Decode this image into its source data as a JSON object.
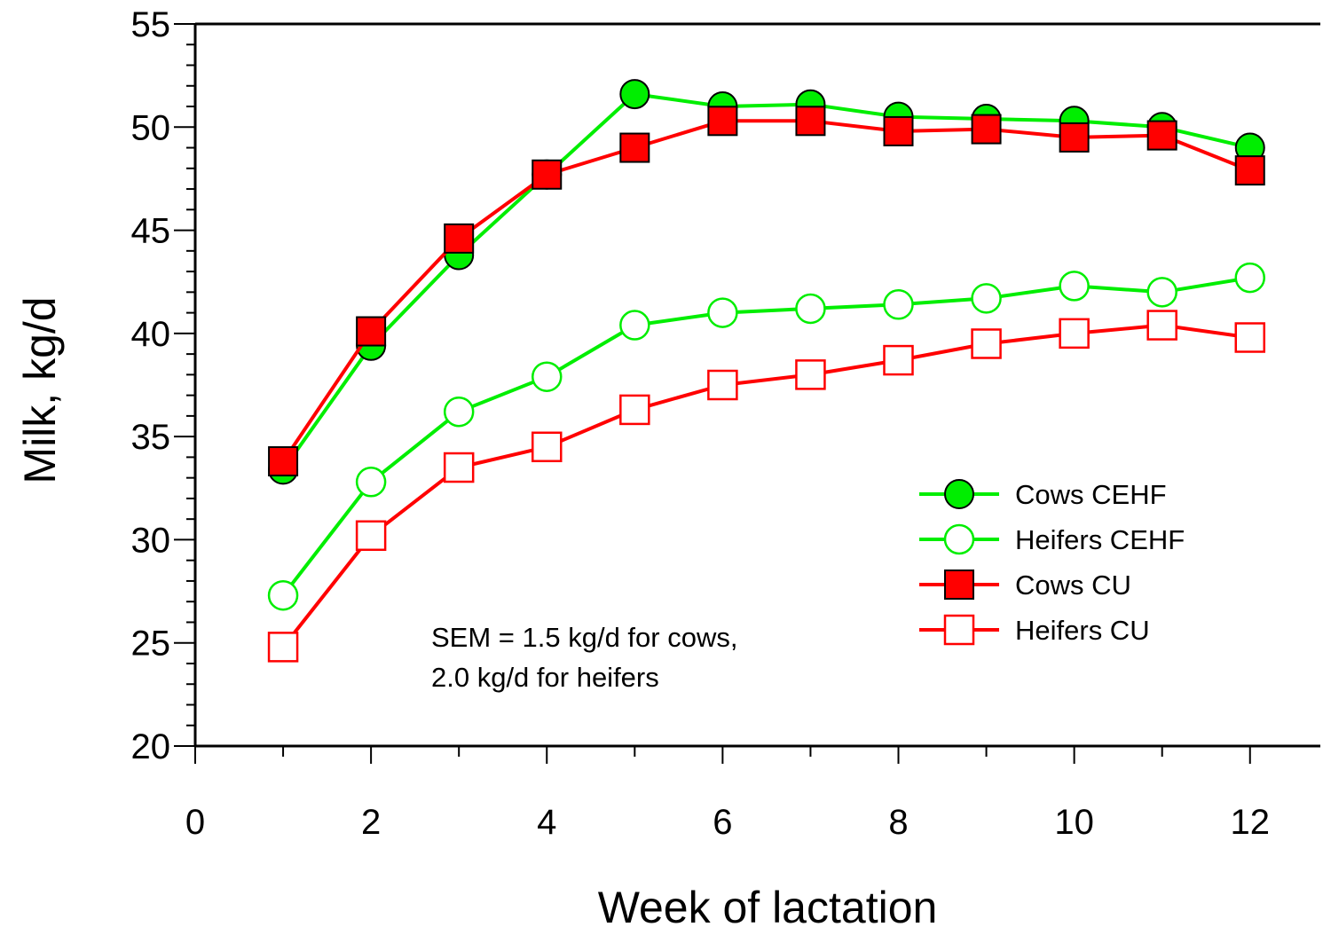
{
  "chart_data": {
    "type": "line",
    "title": "",
    "xlabel": "Week of lactation",
    "ylabel": "Milk, kg/d",
    "xlim": [
      0,
      12.8
    ],
    "ylim": [
      20,
      55
    ],
    "x_ticks": [
      "0",
      "2",
      "4",
      "6",
      "8",
      "10",
      "12"
    ],
    "y_ticks": [
      "20",
      "25",
      "30",
      "35",
      "40",
      "45",
      "50",
      "55"
    ],
    "grid": false,
    "legend_position": "bottom-right",
    "x": [
      1,
      2,
      3,
      4,
      5,
      6,
      7,
      8,
      9,
      10,
      11,
      12
    ],
    "series": [
      {
        "name": "Cows CEHF",
        "color": "#00ee00",
        "marker": "filled-circle",
        "values": [
          33.4,
          39.4,
          43.8,
          47.7,
          51.6,
          51.0,
          51.1,
          50.5,
          50.4,
          50.3,
          50.0,
          49.0
        ]
      },
      {
        "name": "Heifers CEHF",
        "color": "#00ee00",
        "marker": "open-circle",
        "values": [
          27.3,
          32.8,
          36.2,
          37.9,
          40.4,
          41.0,
          41.2,
          41.4,
          41.7,
          42.3,
          42.0,
          42.7
        ]
      },
      {
        "name": "Cows CU",
        "color": "#ff0000",
        "marker": "filled-square",
        "values": [
          33.8,
          40.1,
          44.6,
          47.7,
          49.0,
          50.3,
          50.3,
          49.8,
          49.9,
          49.5,
          49.6,
          47.9
        ]
      },
      {
        "name": "Heifers CU",
        "color": "#ff0000",
        "marker": "open-square",
        "values": [
          24.8,
          30.2,
          33.5,
          34.5,
          36.3,
          37.5,
          38.0,
          38.7,
          39.5,
          40.0,
          40.4,
          39.8
        ]
      }
    ],
    "annotation_lines": [
      "SEM = 1.5 kg/d for cows,",
      "2.0 kg/d for heifers"
    ]
  }
}
